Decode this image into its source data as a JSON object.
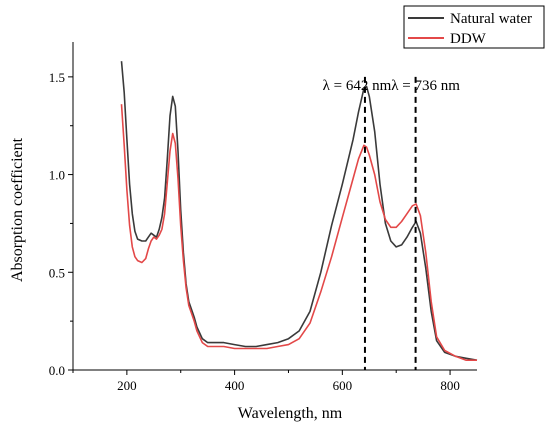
{
  "chart_data": {
    "type": "line",
    "xlabel": "Wavelength, nm",
    "ylabel": "Absorption coefficient",
    "xlim": [
      100,
      850
    ],
    "ylim": [
      0,
      1.75
    ],
    "xticks": [
      200,
      400,
      600,
      800
    ],
    "yticks": [
      0.0,
      0.5,
      1.0,
      1.5
    ],
    "ytick_labels": [
      "0.0",
      "0.5",
      "1.0",
      "1.5"
    ],
    "grid": false,
    "legend_position": "top-right",
    "series": [
      {
        "name": "Natural water",
        "color": "#3a3a3a",
        "points": [
          [
            190,
            1.58
          ],
          [
            195,
            1.42
          ],
          [
            200,
            1.18
          ],
          [
            205,
            0.95
          ],
          [
            210,
            0.8
          ],
          [
            215,
            0.71
          ],
          [
            220,
            0.67
          ],
          [
            228,
            0.66
          ],
          [
            235,
            0.66
          ],
          [
            240,
            0.68
          ],
          [
            245,
            0.7
          ],
          [
            250,
            0.69
          ],
          [
            255,
            0.68
          ],
          [
            260,
            0.72
          ],
          [
            265,
            0.78
          ],
          [
            270,
            0.88
          ],
          [
            275,
            1.08
          ],
          [
            280,
            1.3
          ],
          [
            285,
            1.4
          ],
          [
            290,
            1.35
          ],
          [
            295,
            1.12
          ],
          [
            300,
            0.82
          ],
          [
            305,
            0.6
          ],
          [
            310,
            0.44
          ],
          [
            315,
            0.35
          ],
          [
            320,
            0.31
          ],
          [
            325,
            0.27
          ],
          [
            330,
            0.22
          ],
          [
            340,
            0.16
          ],
          [
            350,
            0.14
          ],
          [
            360,
            0.14
          ],
          [
            380,
            0.14
          ],
          [
            400,
            0.13
          ],
          [
            420,
            0.12
          ],
          [
            440,
            0.12
          ],
          [
            460,
            0.13
          ],
          [
            480,
            0.14
          ],
          [
            500,
            0.16
          ],
          [
            520,
            0.2
          ],
          [
            540,
            0.3
          ],
          [
            560,
            0.5
          ],
          [
            580,
            0.74
          ],
          [
            600,
            0.95
          ],
          [
            620,
            1.18
          ],
          [
            630,
            1.32
          ],
          [
            640,
            1.44
          ],
          [
            645,
            1.45
          ],
          [
            650,
            1.4
          ],
          [
            660,
            1.22
          ],
          [
            670,
            0.95
          ],
          [
            680,
            0.75
          ],
          [
            690,
            0.66
          ],
          [
            700,
            0.63
          ],
          [
            710,
            0.64
          ],
          [
            720,
            0.68
          ],
          [
            730,
            0.73
          ],
          [
            737,
            0.76
          ],
          [
            745,
            0.7
          ],
          [
            755,
            0.52
          ],
          [
            765,
            0.3
          ],
          [
            775,
            0.15
          ],
          [
            790,
            0.09
          ],
          [
            810,
            0.07
          ],
          [
            830,
            0.06
          ],
          [
            850,
            0.05
          ]
        ]
      },
      {
        "name": "DDW",
        "color": "#e34848",
        "points": [
          [
            190,
            1.36
          ],
          [
            195,
            1.15
          ],
          [
            200,
            0.92
          ],
          [
            205,
            0.74
          ],
          [
            210,
            0.63
          ],
          [
            215,
            0.58
          ],
          [
            220,
            0.56
          ],
          [
            228,
            0.55
          ],
          [
            235,
            0.57
          ],
          [
            240,
            0.62
          ],
          [
            245,
            0.66
          ],
          [
            250,
            0.68
          ],
          [
            255,
            0.67
          ],
          [
            260,
            0.69
          ],
          [
            265,
            0.72
          ],
          [
            270,
            0.8
          ],
          [
            275,
            0.96
          ],
          [
            280,
            1.12
          ],
          [
            285,
            1.21
          ],
          [
            290,
            1.16
          ],
          [
            295,
            0.98
          ],
          [
            300,
            0.74
          ],
          [
            305,
            0.56
          ],
          [
            310,
            0.42
          ],
          [
            315,
            0.33
          ],
          [
            320,
            0.29
          ],
          [
            325,
            0.25
          ],
          [
            330,
            0.2
          ],
          [
            340,
            0.14
          ],
          [
            350,
            0.12
          ],
          [
            360,
            0.12
          ],
          [
            380,
            0.12
          ],
          [
            400,
            0.11
          ],
          [
            420,
            0.11
          ],
          [
            440,
            0.11
          ],
          [
            460,
            0.11
          ],
          [
            480,
            0.12
          ],
          [
            500,
            0.13
          ],
          [
            520,
            0.16
          ],
          [
            540,
            0.24
          ],
          [
            560,
            0.4
          ],
          [
            580,
            0.58
          ],
          [
            600,
            0.78
          ],
          [
            620,
            0.98
          ],
          [
            630,
            1.08
          ],
          [
            640,
            1.15
          ],
          [
            645,
            1.14
          ],
          [
            650,
            1.1
          ],
          [
            660,
            1.0
          ],
          [
            670,
            0.86
          ],
          [
            680,
            0.77
          ],
          [
            690,
            0.73
          ],
          [
            700,
            0.73
          ],
          [
            710,
            0.76
          ],
          [
            720,
            0.8
          ],
          [
            730,
            0.84
          ],
          [
            737,
            0.85
          ],
          [
            745,
            0.79
          ],
          [
            755,
            0.6
          ],
          [
            765,
            0.35
          ],
          [
            775,
            0.17
          ],
          [
            790,
            0.1
          ],
          [
            810,
            0.07
          ],
          [
            830,
            0.05
          ],
          [
            850,
            0.05
          ]
        ]
      }
    ],
    "annotations": [
      {
        "label": "λ = 642 nm",
        "x": 642
      },
      {
        "label": "λ = 736 nm",
        "x": 736
      }
    ]
  }
}
